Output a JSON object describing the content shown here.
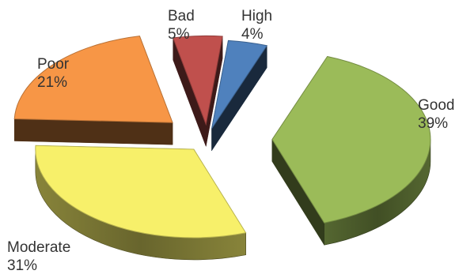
{
  "chart_data": {
    "type": "pie",
    "variant": "3d-exploded",
    "title": "",
    "legend": "none",
    "slices": [
      {
        "name": "High",
        "value": 4,
        "label": "4%",
        "color": "#4f81bd"
      },
      {
        "name": "Good",
        "value": 39,
        "label": "39%",
        "color": "#9bbb59"
      },
      {
        "name": "Moderate",
        "value": 31,
        "label": "31%",
        "color": "#f7f06a"
      },
      {
        "name": "Poor",
        "value": 21,
        "label": "21%",
        "color": "#f79646"
      },
      {
        "name": "Bad",
        "value": 5,
        "label": "5%",
        "color": "#c0504d"
      }
    ]
  }
}
